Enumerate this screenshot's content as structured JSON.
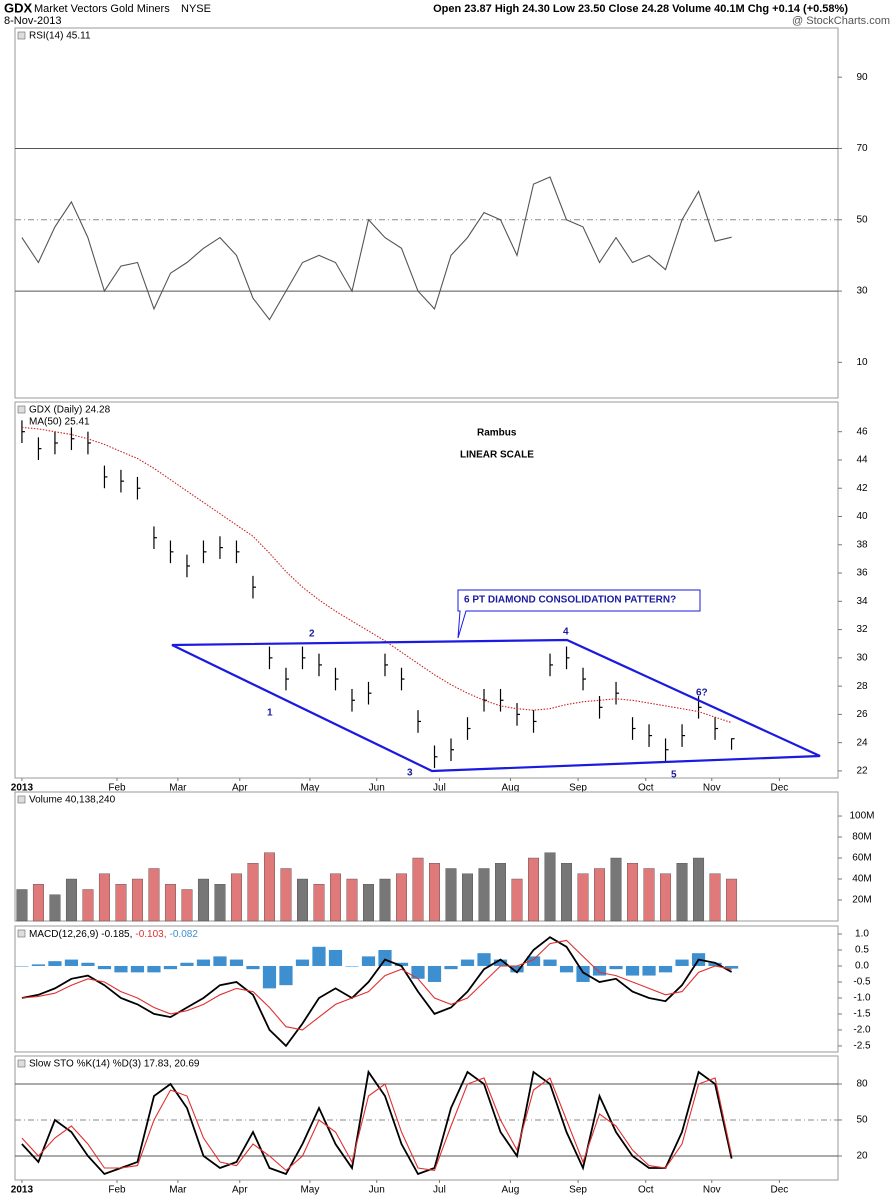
{
  "header": {
    "symbol": "GDX",
    "name": "Market Vectors Gold Miners",
    "exchange": "NYSE",
    "date": "8-Nov-2013",
    "quote": "Open 23.87  High 24.30  Low 23.50  Close 24.28  Volume 40.1M  Chg +0.14 (+0.58%)",
    "brand": "@ StockCharts.com"
  },
  "chart_data": {
    "type": "financial",
    "x": [
      0,
      1,
      2,
      3,
      4,
      5,
      6,
      7,
      8,
      9,
      10,
      11,
      12,
      13,
      14,
      15,
      16,
      17,
      18,
      19,
      20,
      21,
      22,
      23,
      24,
      25,
      26,
      27,
      28,
      29,
      30,
      31,
      32,
      33,
      34,
      35,
      36,
      37,
      38,
      39,
      40,
      41,
      42,
      43
    ],
    "xlim": [
      -0.42,
      49.45
    ],
    "xticks": [
      {
        "value": 0,
        "label": "2013"
      },
      {
        "value": 5.76,
        "label": "Feb"
      },
      {
        "value": 9.45,
        "label": "Mar"
      },
      {
        "value": 13.2,
        "label": "Apr"
      },
      {
        "value": 17.45,
        "label": "May"
      },
      {
        "value": 21.5,
        "label": "Jun"
      },
      {
        "value": 25.3,
        "label": "Jul"
      },
      {
        "value": 29.6,
        "label": "Aug"
      },
      {
        "value": 33.7,
        "label": "Sep"
      },
      {
        "value": 37.8,
        "label": "Oct"
      },
      {
        "value": 41.8,
        "label": "Nov"
      },
      {
        "value": 45.9,
        "label": "Dec"
      }
    ],
    "panels": [
      {
        "type": "line",
        "title": "RSI(14) 45.11",
        "ylim": [
          0,
          103.8
        ],
        "yticks": [
          10,
          30,
          50,
          70,
          90
        ],
        "reflines": [
          {
            "value": 30,
            "style": "solid"
          },
          {
            "value": 50,
            "style": "dashed"
          },
          {
            "value": 70,
            "style": "solid"
          }
        ],
        "series": [
          {
            "type": "line",
            "name": "RSI(14)",
            "color": "#555555",
            "values": [
              45,
              38,
              48,
              55,
              45,
              30,
              37,
              38,
              25,
              35,
              38,
              42,
              45,
              40,
              28,
              22,
              30,
              38,
              40,
              38,
              30,
              50,
              45,
              42,
              30,
              25,
              40,
              45,
              52,
              50,
              40,
              60,
              62,
              50,
              48,
              38,
              45,
              38,
              40,
              36,
              50,
              58,
              44,
              45.11
            ]
          }
        ]
      },
      {
        "type": "ohlc",
        "ylim": [
          21.5,
          48.1
        ],
        "yticks": [
          22,
          24,
          26,
          28,
          30,
          32,
          34,
          36,
          38,
          40,
          42,
          44,
          46
        ],
        "show_xticks": true,
        "annotations": [
          "Rambus",
          "LINEAR SCALE",
          "6 PT DIAMOND CONSOLIDATION PATTERN?",
          "1",
          "2",
          "3",
          "4",
          "5",
          "6?"
        ],
        "series": [
          {
            "type": "ohlc",
            "name": "GDX (Daily)",
            "legend": "GDX (Daily) 24.28",
            "color": "#000000",
            "high": [
              46.8,
              45.6,
              46,
              46.3,
              46,
              43.6,
              43.3,
              42.8,
              39.3,
              38.3,
              37.3,
              38.3,
              38.6,
              38.3,
              35.8,
              30.8,
              29.3,
              30.8,
              30.3,
              29.3,
              27.8,
              28.3,
              30.3,
              29.3,
              26.3,
              23.8,
              24.3,
              25.8,
              27.8,
              27.8,
              26.8,
              26.3,
              30.3,
              30.8,
              29.3,
              27.3,
              28.3,
              25.8,
              25.3,
              24.3,
              25.3,
              27.3,
              25.8,
              24.3
            ],
            "low": [
              45.2,
              44,
              44.4,
              44.7,
              44.4,
              42,
              41.7,
              41.2,
              37.7,
              36.7,
              35.7,
              36.7,
              37,
              36.7,
              34.2,
              29.2,
              27.7,
              29.2,
              28.7,
              27.7,
              26.2,
              26.7,
              28.7,
              27.7,
              24.7,
              22.2,
              22.7,
              24.2,
              26.2,
              26.2,
              25.2,
              24.7,
              28.7,
              29.2,
              27.7,
              25.7,
              26.7,
              24.2,
              23.7,
              22.7,
              23.7,
              25.7,
              24.2,
              23.5
            ],
            "close": [
              46,
              44.8,
              45.2,
              45.5,
              45.2,
              42.8,
              42.5,
              42,
              38.5,
              37.5,
              36.5,
              37.5,
              37.8,
              37.5,
              35,
              30,
              28.5,
              30,
              29.5,
              28.5,
              27,
              27.5,
              29.5,
              28.5,
              25.5,
              23,
              23.5,
              25,
              27,
              27,
              26,
              25.5,
              29.5,
              30,
              28.5,
              26.5,
              27.5,
              25,
              24.5,
              23.5,
              24.5,
              26.5,
              25,
              24.28
            ]
          },
          {
            "type": "line",
            "name": "MA(50)",
            "legend": "MA(50) 25.41",
            "color": "#cc2222",
            "dotted": true,
            "values": [
              46.3,
              46.2,
              46,
              45.8,
              45.5,
              45.1,
              44.6,
              44.1,
              43.4,
              42.6,
              41.8,
              41,
              40.2,
              39.4,
              38.6,
              37.4,
              36.1,
              35,
              34.1,
              33.3,
              32.6,
              31.9,
              31.2,
              30.4,
              29.6,
              28.8,
              28.1,
              27.5,
              27,
              26.6,
              26.4,
              26.3,
              26.4,
              26.7,
              26.9,
              27,
              27.1,
              27,
              26.8,
              26.6,
              26.4,
              26.2,
              25.8,
              25.41
            ]
          }
        ]
      },
      {
        "type": "bar",
        "title": "Volume 40,138,240",
        "ylim": [
          0,
          122.9
        ],
        "yticks": [
          {
            "value": 20,
            "label": "20M"
          },
          {
            "value": 40,
            "label": "40M"
          },
          {
            "value": 60,
            "label": "60M"
          },
          {
            "value": 80,
            "label": "80M"
          },
          {
            "value": 100,
            "label": "100M"
          }
        ],
        "series": [
          {
            "type": "bar",
            "name": "Volume",
            "up_color": "#777777",
            "down_color": "#e07a7a",
            "values": [
              30,
              35,
              25,
              40,
              30,
              45,
              35,
              40,
              50,
              35,
              30,
              40,
              35,
              45,
              55,
              65,
              50,
              40,
              35,
              45,
              40,
              35,
              40,
              45,
              60,
              55,
              50,
              45,
              50,
              55,
              40,
              60,
              65,
              55,
              45,
              50,
              60,
              55,
              50,
              45,
              55,
              60,
              45,
              40
            ]
          }
        ]
      },
      {
        "type": "combo",
        "title_parts": [
          "MACD(12,26,9) -0.185,",
          "-0.103,",
          "-0.082"
        ],
        "ylim": [
          -2.69,
          1.25
        ],
        "yticks": [
          {
            "value": 1,
            "label": "1.0"
          },
          0.5,
          {
            "value": 0,
            "label": "0.0"
          },
          -0.5,
          {
            "value": -1,
            "label": "-1.0"
          },
          -1.5,
          {
            "value": -2,
            "label": "-2.0"
          },
          -2.5
        ],
        "series": [
          {
            "type": "histogram",
            "name": "Histogram",
            "color": "#3d8fd0",
            "values": [
              0,
              0.05,
              0.15,
              0.2,
              0.1,
              -0.1,
              -0.2,
              -0.2,
              -0.2,
              -0.1,
              0.1,
              0.2,
              0.3,
              0.2,
              -0.1,
              -0.7,
              -0.6,
              0.2,
              0.6,
              0.5,
              0,
              0.3,
              0.5,
              0.1,
              -0.4,
              -0.5,
              -0.1,
              0.2,
              0.4,
              0.2,
              -0.2,
              0.3,
              0.2,
              -0.2,
              -0.5,
              -0.3,
              -0.1,
              -0.3,
              -0.3,
              -0.2,
              0.2,
              0.4,
              0.1,
              -0.082
            ]
          },
          {
            "type": "line",
            "name": "MACD",
            "color": "#000000",
            "width": 1.8,
            "values": [
              -1,
              -0.9,
              -0.7,
              -0.4,
              -0.3,
              -0.6,
              -1.0,
              -1.2,
              -1.5,
              -1.6,
              -1.3,
              -1.0,
              -0.6,
              -0.5,
              -0.9,
              -2.0,
              -2.5,
              -1.8,
              -1.0,
              -0.7,
              -1.0,
              -0.5,
              0.2,
              0,
              -0.8,
              -1.5,
              -1.3,
              -0.8,
              -0.1,
              0.2,
              -0.2,
              0.5,
              0.9,
              0.6,
              -0.2,
              -0.5,
              -0.4,
              -0.8,
              -1.0,
              -1.1,
              -0.6,
              0.2,
              0.1,
              -0.185
            ]
          },
          {
            "type": "line",
            "name": "Signal",
            "color": "#e03030",
            "values": [
              -1,
              -0.95,
              -0.85,
              -0.6,
              -0.4,
              -0.5,
              -0.8,
              -1.0,
              -1.3,
              -1.5,
              -1.4,
              -1.2,
              -0.9,
              -0.7,
              -0.8,
              -1.3,
              -1.9,
              -2.0,
              -1.6,
              -1.2,
              -1.0,
              -0.8,
              -0.3,
              -0.1,
              -0.4,
              -1.0,
              -1.2,
              -1.0,
              -0.5,
              0,
              0,
              0.2,
              0.7,
              0.8,
              0.3,
              -0.2,
              -0.3,
              -0.5,
              -0.7,
              -0.9,
              -0.8,
              -0.2,
              0,
              -0.103
            ]
          }
        ]
      },
      {
        "type": "line",
        "title": "Slow STO %K(14) %D(3) 17.83, 20.69",
        "ylim": [
          0,
          103.3
        ],
        "yticks": [
          20,
          50,
          80
        ],
        "show_xticks": true,
        "reflines": [
          {
            "value": 20,
            "style": "solid"
          },
          {
            "value": 50,
            "style": "dashed"
          },
          {
            "value": 80,
            "style": "solid"
          }
        ],
        "series": [
          {
            "type": "line",
            "name": "%K(14)",
            "color": "#000000",
            "width": 1.8,
            "values": [
              30,
              15,
              50,
              40,
              20,
              5,
              10,
              15,
              70,
              80,
              60,
              20,
              10,
              15,
              40,
              10,
              5,
              30,
              60,
              30,
              10,
              90,
              70,
              30,
              5,
              10,
              60,
              90,
              80,
              40,
              20,
              90,
              80,
              40,
              10,
              70,
              40,
              20,
              10,
              10,
              40,
              90,
              80,
              17.83
            ]
          },
          {
            "type": "line",
            "name": "%D(3)",
            "color": "#e03030",
            "values": [
              35,
              20,
              35,
              45,
              30,
              10,
              10,
              12,
              50,
              75,
              70,
              35,
              15,
              12,
              30,
              20,
              8,
              20,
              50,
              40,
              15,
              70,
              80,
              40,
              10,
              8,
              45,
              80,
              85,
              50,
              25,
              75,
              85,
              50,
              15,
              55,
              45,
              25,
              12,
              10,
              30,
              80,
              85,
              20.69
            ]
          }
        ]
      }
    ]
  }
}
